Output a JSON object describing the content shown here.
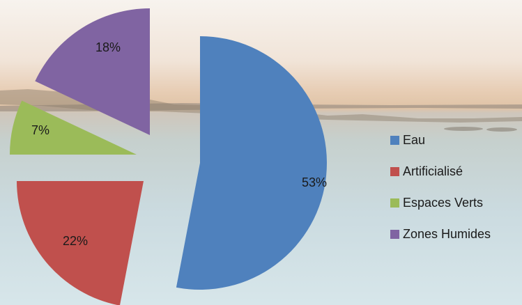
{
  "background": {
    "sky_top": "#f6f1ea",
    "horizon": "#e6c9ad",
    "water": "#c9d7da",
    "water_bottom": "#d6e6ea",
    "shore": "#7f776f"
  },
  "chart_data": {
    "type": "pie",
    "exploded": true,
    "slices": [
      {
        "label": "Eau",
        "value": 53,
        "display": "53%",
        "color": "#4f81bd"
      },
      {
        "label": "Artificialisé",
        "value": 22,
        "display": "22%",
        "color": "#c0504d"
      },
      {
        "label": "Espaces Verts",
        "value": 7,
        "display": "7%",
        "color": "#9bbb59"
      },
      {
        "label": "Zones Humides",
        "value": 18,
        "display": "18%",
        "color": "#8064a2"
      }
    ],
    "legend_position": "right"
  }
}
